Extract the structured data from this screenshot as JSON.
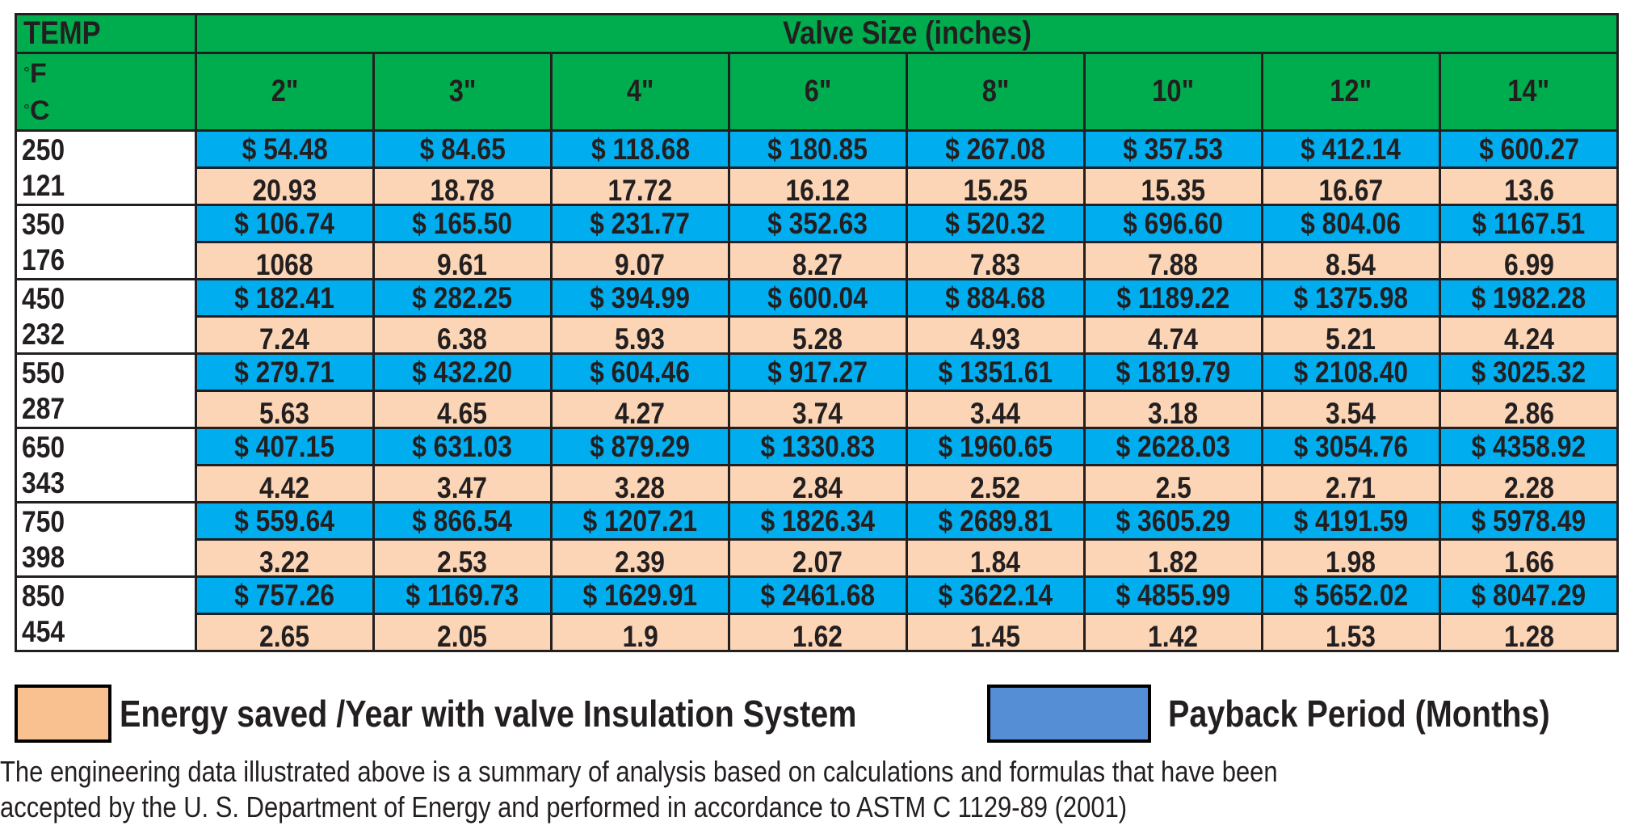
{
  "header": {
    "temp_label": "TEMP",
    "valve_size_label": "Valve Size (inches)",
    "unit_f": "F",
    "unit_c": "C",
    "degree_symbol": "°",
    "sizes": [
      "2\"",
      "3\"",
      "4\"",
      "6\"",
      "8\"",
      "10\"",
      "12\"",
      "14\""
    ]
  },
  "rows": [
    {
      "f": "250",
      "c": "121",
      "cost": [
        "$ 54.48",
        "$ 84.65",
        "$ 118.68",
        "$ 180.85",
        "$ 267.08",
        "$ 357.53",
        "$ 412.14",
        "$ 600.27"
      ],
      "payback": [
        "20.93",
        "18.78",
        "17.72",
        "16.12",
        "15.25",
        "15.35",
        "16.67",
        "13.6"
      ]
    },
    {
      "f": "350",
      "c": "176",
      "cost": [
        "$ 106.74",
        "$ 165.50",
        "$ 231.77",
        "$ 352.63",
        "$ 520.32",
        "$ 696.60",
        "$ 804.06",
        "$ 1167.51"
      ],
      "payback": [
        "1068",
        "9.61",
        "9.07",
        "8.27",
        "7.83",
        "7.88",
        "8.54",
        "6.99"
      ]
    },
    {
      "f": "450",
      "c": "232",
      "cost": [
        "$ 182.41",
        "$ 282.25",
        "$ 394.99",
        "$ 600.04",
        "$ 884.68",
        "$ 1189.22",
        "$ 1375.98",
        "$ 1982.28"
      ],
      "payback": [
        "7.24",
        "6.38",
        "5.93",
        "5.28",
        "4.93",
        "4.74",
        "5.21",
        "4.24"
      ]
    },
    {
      "f": "550",
      "c": "287",
      "cost": [
        "$ 279.71",
        "$ 432.20",
        "$ 604.46",
        "$ 917.27",
        "$ 1351.61",
        "$ 1819.79",
        "$ 2108.40",
        "$ 3025.32"
      ],
      "payback": [
        "5.63",
        "4.65",
        "4.27",
        "3.74",
        "3.44",
        "3.18",
        "3.54",
        "2.86"
      ]
    },
    {
      "f": "650",
      "c": "343",
      "cost": [
        "$ 407.15",
        "$ 631.03",
        "$ 879.29",
        "$ 1330.83",
        "$ 1960.65",
        "$ 2628.03",
        "$ 3054.76",
        "$ 4358.92"
      ],
      "payback": [
        "4.42",
        "3.47",
        "3.28",
        "2.84",
        "2.52",
        "2.5",
        "2.71",
        "2.28"
      ]
    },
    {
      "f": "750",
      "c": "398",
      "cost": [
        "$ 559.64",
        "$ 866.54",
        "$ 1207.21",
        "$ 1826.34",
        "$ 2689.81",
        "$ 3605.29",
        "$ 4191.59",
        "$ 5978.49"
      ],
      "payback": [
        "3.22",
        "2.53",
        "2.39",
        "2.07",
        "1.84",
        "1.82",
        "1.98",
        "1.66"
      ]
    },
    {
      "f": "850",
      "c": "454",
      "cost": [
        "$ 757.26",
        "$ 1169.73",
        "$ 1629.91",
        "$ 2461.68",
        "$ 3622.14",
        "$ 4855.99",
        "$ 5652.02",
        "$ 8047.29"
      ],
      "payback": [
        "2.65",
        "2.05",
        "1.9",
        "1.62",
        "1.45",
        "1.42",
        "1.53",
        "1.28"
      ]
    }
  ],
  "legend": {
    "energy_label": "Energy saved /Year with valve Insulation System",
    "payback_label": "Payback Period (Months)",
    "energy_color": "#f9c090",
    "payback_color": "#558ed5"
  },
  "footnote": {
    "line1": "The engineering data illustrated above is a  summary of analysis based on calculations and formulas that have been",
    "line2": "accepted by the U. S. Department of Energy and performed in accordance to ASTM C 1129-89 (2001)"
  },
  "colors": {
    "header_green": "#00ad4e",
    "cost_blue": "#00aeef",
    "payback_peach": "#fbd5b5",
    "text": "#231f20"
  }
}
